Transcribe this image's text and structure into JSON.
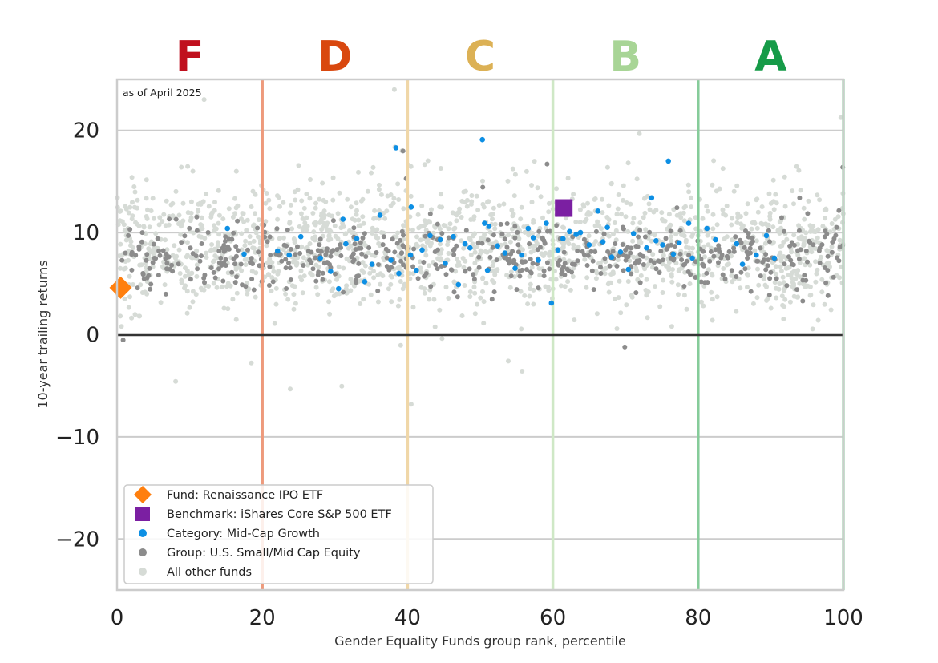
{
  "chart_data": {
    "type": "scatter",
    "title": "",
    "annotation": "as of April 2025",
    "xlabel": "Gender Equality Funds group rank, percentile",
    "ylabel": "10-year trailing returns",
    "xlim": [
      0,
      100
    ],
    "ylim": [
      -25,
      25
    ],
    "x_ticks": [
      0,
      20,
      40,
      60,
      80,
      100
    ],
    "x_tick_labels": [
      "0",
      "20",
      "40",
      "60",
      "80",
      "100"
    ],
    "y_ticks": [
      -20,
      -10,
      0,
      10,
      20
    ],
    "y_tick_labels": [
      "−20",
      "−10",
      "0",
      "10",
      "20"
    ],
    "grid": "horizontal",
    "legend_position": "bottom-left",
    "grades": [
      {
        "label": "F",
        "x": 10,
        "color": "#c0101e"
      },
      {
        "label": "D",
        "x": 30,
        "color": "#d9480f"
      },
      {
        "label": "C",
        "x": 50,
        "color": "#dcb155"
      },
      {
        "label": "B",
        "x": 70,
        "color": "#a8d596"
      },
      {
        "label": "A",
        "x": 90,
        "color": "#169b48"
      }
    ],
    "boundaries": [
      {
        "x": 20,
        "color": "#ee9a7c"
      },
      {
        "x": 40,
        "color": "#f0d7a8"
      },
      {
        "x": 60,
        "color": "#cfe8c6"
      },
      {
        "x": 80,
        "color": "#86cc9a"
      },
      {
        "x": 100,
        "color": "#a9d9b6"
      }
    ],
    "legend": [
      {
        "label": "Fund: Renaissance IPO ETF",
        "marker": "diamond",
        "color": "#ff7f0e"
      },
      {
        "label": "Benchmark: iShares Core S&P 500 ETF",
        "marker": "square",
        "color": "#7b1fa2"
      },
      {
        "label": "Category: Mid-Cap Growth",
        "marker": "circle",
        "color": "#0d8fe4"
      },
      {
        "label": "Group: U.S. Small/Mid Cap Equity",
        "marker": "circle",
        "color": "#8c8c8c"
      },
      {
        "label": "All other funds",
        "marker": "circle",
        "color": "#d6dbd6"
      }
    ],
    "fund_point": {
      "x": 0.5,
      "y": 4.6
    },
    "benchmark_point": {
      "x": 61.5,
      "y": 12.4
    },
    "category_points": [
      [
        15.2,
        10.4
      ],
      [
        17.5,
        7.9
      ],
      [
        22.1,
        8.2
      ],
      [
        25.3,
        9.6
      ],
      [
        28.0,
        7.5
      ],
      [
        31.1,
        11.3
      ],
      [
        31.5,
        8.9
      ],
      [
        34.1,
        5.2
      ],
      [
        36.2,
        11.7
      ],
      [
        37.7,
        7.3
      ],
      [
        38.4,
        18.3
      ],
      [
        38.8,
        6.0
      ],
      [
        40.5,
        12.5
      ],
      [
        40.4,
        7.8
      ],
      [
        42.0,
        8.3
      ],
      [
        43.1,
        9.7
      ],
      [
        45.2,
        7.0
      ],
      [
        46.3,
        9.6
      ],
      [
        47.0,
        4.9
      ],
      [
        48.6,
        8.5
      ],
      [
        50.3,
        19.1
      ],
      [
        50.6,
        10.9
      ],
      [
        51.2,
        10.6
      ],
      [
        51.0,
        6.3
      ],
      [
        53.4,
        8.0
      ],
      [
        54.8,
        6.5
      ],
      [
        56.6,
        10.4
      ],
      [
        58.0,
        7.3
      ],
      [
        59.1,
        10.9
      ],
      [
        59.8,
        3.1
      ],
      [
        61.4,
        9.4
      ],
      [
        62.3,
        10.1
      ],
      [
        63.8,
        10.0
      ],
      [
        65.0,
        8.8
      ],
      [
        66.2,
        12.1
      ],
      [
        67.5,
        10.5
      ],
      [
        68.1,
        7.6
      ],
      [
        69.3,
        8.1
      ],
      [
        70.4,
        6.4
      ],
      [
        71.1,
        9.9
      ],
      [
        73.6,
        13.4
      ],
      [
        74.2,
        9.2
      ],
      [
        75.1,
        8.8
      ],
      [
        75.9,
        17.0
      ],
      [
        76.6,
        7.9
      ],
      [
        78.7,
        10.9
      ],
      [
        79.2,
        7.5
      ],
      [
        81.2,
        10.4
      ],
      [
        82.4,
        9.3
      ],
      [
        85.3,
        8.9
      ],
      [
        86.1,
        6.9
      ],
      [
        88.0,
        7.8
      ],
      [
        89.4,
        9.7
      ],
      [
        90.5,
        7.5
      ],
      [
        33.0,
        9.4
      ],
      [
        44.5,
        9.3
      ],
      [
        52.4,
        8.7
      ],
      [
        60.7,
        8.3
      ],
      [
        66.9,
        9.1
      ],
      [
        72.9,
        8.5
      ],
      [
        77.4,
        9.0
      ],
      [
        23.7,
        7.8
      ],
      [
        29.4,
        6.2
      ],
      [
        30.5,
        4.5
      ],
      [
        35.1,
        6.9
      ],
      [
        41.2,
        6.3
      ],
      [
        47.9,
        8.9
      ],
      [
        55.7,
        7.8
      ],
      [
        57.3,
        9.5
      ],
      [
        63.2,
        9.8
      ]
    ]
  }
}
